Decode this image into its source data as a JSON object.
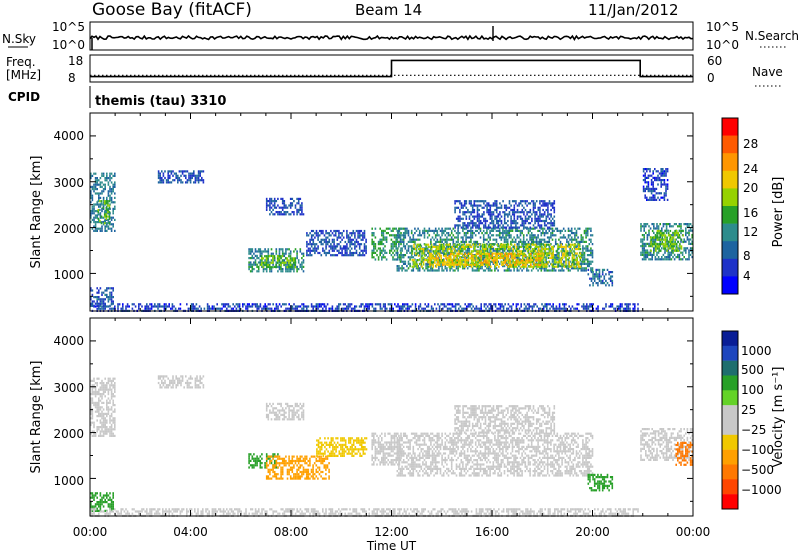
{
  "header": {
    "station": "Goose Bay (fitACF)",
    "beam": "Beam 14",
    "date": "11/Jan/2012"
  },
  "noise_panel": {
    "left_label": "N.Sky",
    "right_label": "N.Search",
    "y_ticks": [
      "10^5",
      "10^0"
    ]
  },
  "freq_panel": {
    "left_label_line1": "Freq.",
    "left_label_line2": "[MHz]",
    "left_ticks": [
      "18",
      "8"
    ],
    "right_ticks": [
      "60",
      "0"
    ],
    "right_label": "Nave"
  },
  "cpid_panel": {
    "label": "CPID",
    "value": "themis (tau) 3310"
  },
  "power_panel": {
    "ylabel": "Slant Range [km]",
    "y_ticks": [
      "4000",
      "3000",
      "2000",
      "1000"
    ],
    "colorbar_label": "Power [dB]",
    "colorbar_ticks": [
      "28",
      "24",
      "20",
      "16",
      "12",
      "8",
      "4"
    ],
    "colorbar_colors": [
      "#ff0000",
      "#ff5a00",
      "#ff9600",
      "#f0c800",
      "#96d200",
      "#28a028",
      "#2d8c8c",
      "#1e64a0",
      "#1e32c8",
      "#0000ff"
    ]
  },
  "velocity_panel": {
    "ylabel": "Slant Range [km]",
    "y_ticks": [
      "4000",
      "3000",
      "2000",
      "1000"
    ],
    "colorbar_label": "Velocity [m s⁻¹]",
    "colorbar_ticks": [
      "1000",
      "500",
      "100",
      "25",
      "−25",
      "−100",
      "−500",
      "−1000"
    ],
    "colorbar_colors": [
      "#0a1e96",
      "#1e46be",
      "#1e6e6e",
      "#28a028",
      "#64d228",
      "#c8c8c8",
      "#c8c8c8",
      "#f0c800",
      "#ffa000",
      "#ff7800",
      "#ff4600",
      "#ff0000"
    ]
  },
  "x_axis": {
    "tick_labels": [
      "00:00",
      "04:00",
      "08:00",
      "12:00",
      "16:00",
      "20:00",
      "00:00"
    ],
    "label": "Time UT"
  },
  "chart_data": [
    {
      "type": "line",
      "name": "noise",
      "x_range": [
        0,
        24
      ],
      "y_scale": "log",
      "y_range": [
        1,
        100000
      ],
      "series": [
        {
          "name": "N.Sky",
          "level": "approx 10^2.5, nearly flat with a spike near 16:00 UT"
        }
      ]
    },
    {
      "type": "line",
      "name": "frequency_and_nave",
      "x": [
        0,
        12,
        12,
        21.9,
        21.9,
        24
      ],
      "series": [
        {
          "name": "Freq. [MHz]",
          "values": [
            10,
            10,
            16,
            16,
            10,
            10
          ],
          "ylim": [
            8,
            18
          ]
        },
        {
          "name": "Nave",
          "values": [
            15,
            15,
            15,
            15,
            15,
            15
          ],
          "ylim": [
            0,
            60
          ]
        }
      ]
    },
    {
      "type": "heatmap",
      "name": "power",
      "x_range": [
        0,
        24
      ],
      "y_range": [
        180,
        4500
      ],
      "clim": [
        0,
        30
      ],
      "unit": "dB",
      "patches": [
        {
          "t0": 0.0,
          "t1": 0.9,
          "r0": 300,
          "r1": 700,
          "v": 7
        },
        {
          "t0": 0.0,
          "t1": 21.8,
          "r0": 200,
          "r1": 350,
          "v": 5
        },
        {
          "t0": 0.0,
          "t1": 1.0,
          "r0": 1950,
          "r1": 3200,
          "v": 9
        },
        {
          "t0": 0.3,
          "t1": 0.8,
          "r0": 2100,
          "r1": 2600,
          "v": 14
        },
        {
          "t0": 2.7,
          "t1": 4.5,
          "r0": 3000,
          "r1": 3250,
          "v": 6
        },
        {
          "t0": 6.3,
          "t1": 8.5,
          "r0": 1050,
          "r1": 1550,
          "v": 10
        },
        {
          "t0": 6.8,
          "t1": 8.2,
          "r0": 1150,
          "r1": 1400,
          "v": 15
        },
        {
          "t0": 7.0,
          "t1": 8.5,
          "r0": 2300,
          "r1": 2650,
          "v": 6
        },
        {
          "t0": 8.6,
          "t1": 11.0,
          "r0": 1400,
          "r1": 1950,
          "v": 6
        },
        {
          "t0": 11.2,
          "t1": 12.4,
          "r0": 1300,
          "r1": 2000,
          "v": 12
        },
        {
          "t0": 12.2,
          "t1": 20.0,
          "r0": 1050,
          "r1": 2000,
          "v": 10
        },
        {
          "t0": 12.8,
          "t1": 19.5,
          "r0": 1150,
          "r1": 1650,
          "v": 17
        },
        {
          "t0": 13.5,
          "t1": 18.0,
          "r0": 1200,
          "r1": 1450,
          "v": 20
        },
        {
          "t0": 14.5,
          "t1": 18.5,
          "r0": 2000,
          "r1": 2600,
          "v": 6
        },
        {
          "t0": 19.8,
          "t1": 20.8,
          "r0": 750,
          "r1": 1100,
          "v": 8
        },
        {
          "t0": 21.9,
          "t1": 24.0,
          "r0": 1300,
          "r1": 2100,
          "v": 10
        },
        {
          "t0": 22.3,
          "t1": 23.6,
          "r0": 1500,
          "r1": 1950,
          "v": 15
        },
        {
          "t0": 22.0,
          "t1": 23.0,
          "r0": 2600,
          "r1": 3300,
          "v": 5
        }
      ]
    },
    {
      "type": "heatmap",
      "name": "velocity",
      "x_range": [
        0,
        24
      ],
      "y_range": [
        180,
        4500
      ],
      "clim": [
        -1000,
        1000
      ],
      "unit": "m s^-1",
      "patches": [
        {
          "t0": 0.0,
          "t1": 0.9,
          "r0": 300,
          "r1": 700,
          "v": 60
        },
        {
          "t0": 0.0,
          "t1": 21.8,
          "r0": 200,
          "r1": 350,
          "v": 0
        },
        {
          "t0": 0.0,
          "t1": 1.0,
          "r0": 1950,
          "r1": 3200,
          "v": 0
        },
        {
          "t0": 2.7,
          "t1": 4.5,
          "r0": 3000,
          "r1": 3250,
          "v": 0
        },
        {
          "t0": 6.3,
          "t1": 7.5,
          "r0": 1250,
          "r1": 1550,
          "v": 60
        },
        {
          "t0": 7.0,
          "t1": 9.5,
          "r0": 1000,
          "r1": 1500,
          "v": -60
        },
        {
          "t0": 7.0,
          "t1": 8.5,
          "r0": 2300,
          "r1": 2650,
          "v": 0
        },
        {
          "t0": 9.0,
          "t1": 11.0,
          "r0": 1500,
          "r1": 1900,
          "v": -40
        },
        {
          "t0": 11.2,
          "t1": 12.4,
          "r0": 1300,
          "r1": 2000,
          "v": 0
        },
        {
          "t0": 12.2,
          "t1": 20.0,
          "r0": 1050,
          "r1": 2000,
          "v": 0
        },
        {
          "t0": 14.5,
          "t1": 18.5,
          "r0": 2000,
          "r1": 2600,
          "v": 0
        },
        {
          "t0": 19.8,
          "t1": 20.8,
          "r0": 750,
          "r1": 1100,
          "v": 60
        },
        {
          "t0": 21.9,
          "t1": 24.0,
          "r0": 1400,
          "r1": 2100,
          "v": 0
        },
        {
          "t0": 23.3,
          "t1": 24.0,
          "r0": 1300,
          "r1": 1800,
          "v": -200
        }
      ]
    }
  ]
}
